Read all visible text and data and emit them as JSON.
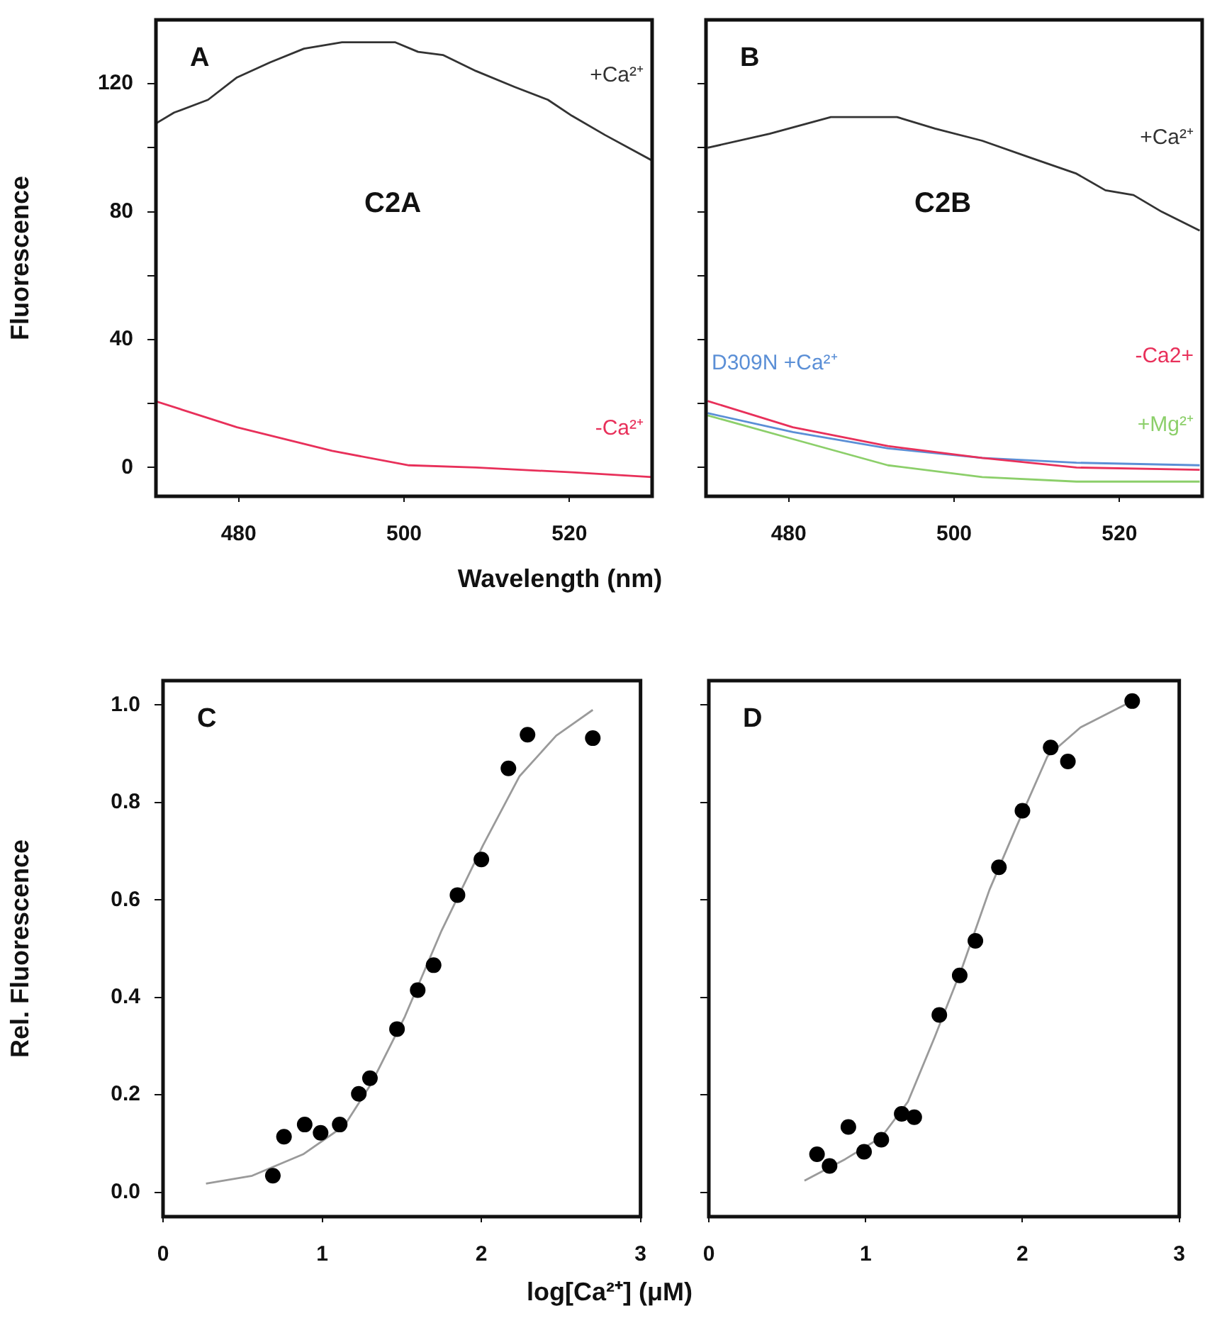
{
  "chart_data": [
    {
      "type": "line",
      "xlabel": "Wavelength (nm)",
      "ylabel": "Fluorescence",
      "annotations": [
        "A",
        "C2A"
      ],
      "xlim": [
        470,
        530
      ],
      "xticks": [
        480,
        500,
        520
      ],
      "ylim": [
        -9,
        140
      ],
      "yticks": [
        0,
        {
          "value": 20,
          "label": null
        },
        40,
        {
          "value": 60,
          "label": null
        },
        80,
        {
          "value": 100,
          "label": null
        },
        120
      ],
      "grid": false,
      "legend": false,
      "marker": "none",
      "line_style": "solid",
      "series": [
        {
          "name": "+Ca²⁺",
          "color": "#333333",
          "x": [
            470,
            472.2,
            476.3,
            479.8,
            483.8,
            487.9,
            492.5,
            498.9,
            501.7,
            504.7,
            508.7,
            513.4,
            517.4,
            520.3,
            524.3,
            530
          ],
          "values": [
            107.6,
            111,
            115,
            122,
            126.7,
            131,
            133,
            133,
            130,
            129,
            124,
            119,
            115,
            110,
            104,
            96
          ]
        },
        {
          "name": "-Ca²⁺",
          "color": "#e8305a",
          "x": [
            470,
            479.8,
            491.3,
            500.6,
            508.7,
            520.3,
            530
          ],
          "values": [
            20.7,
            12.6,
            5.2,
            0.7,
            0,
            -1.5,
            -3
          ]
        }
      ]
    },
    {
      "type": "line",
      "annotations": [
        "B",
        "C2B"
      ],
      "xlim": [
        470,
        530
      ],
      "xticks": [
        480,
        500,
        520
      ],
      "ylim": [
        -9,
        140
      ],
      "yticks": [
        0,
        {
          "value": 20,
          "label": null
        },
        40,
        {
          "value": 60,
          "label": null
        },
        80,
        {
          "value": 100,
          "label": null
        },
        120
      ],
      "tick_labels": "x",
      "grid": false,
      "legend": false,
      "marker": "none",
      "line_style": "solid",
      "series": [
        {
          "name": "+Ca²⁺",
          "color": "#333333",
          "x": [
            470.2,
            477.7,
            485.1,
            493.1,
            497.7,
            503.4,
            509.1,
            514.8,
            518.3,
            521.7,
            525.1,
            529.7
          ],
          "values": [
            100,
            104.4,
            109.6,
            109.6,
            106,
            102.2,
            97,
            91.9,
            86.7,
            85.2,
            80,
            74.1
          ]
        },
        {
          "name": "-Ca2+",
          "color": "#e8305a",
          "x": [
            470.2,
            480.5,
            492,
            503.4,
            514.8,
            529.7
          ],
          "values": [
            20.8,
            12.6,
            6.7,
            3,
            0,
            -0.7
          ]
        },
        {
          "name": "D309N +Ca²⁺",
          "color": "#5b8fd6",
          "x": [
            470.2,
            480.5,
            492,
            503.4,
            514.8,
            529.7
          ],
          "values": [
            17,
            11.1,
            6,
            3,
            1.5,
            0.7
          ]
        },
        {
          "name": "+Mg²⁺",
          "color": "#8ccf6a",
          "x": [
            470.2,
            480.5,
            492,
            503.4,
            514.8,
            529.7
          ],
          "values": [
            16.3,
            8.9,
            0.7,
            -3,
            -4.4,
            -4.4
          ]
        }
      ]
    },
    {
      "type": "scatter",
      "xlabel": "log[Ca²⁺] (μM)",
      "ylabel": "Rel. Fluorescence",
      "annotations": [
        "C"
      ],
      "xlim": [
        0,
        3
      ],
      "xticks": [
        0,
        1,
        2,
        3
      ],
      "ylim": [
        -0.05,
        1.05
      ],
      "yticks": [
        {
          "value": 0,
          "label": "0.0"
        },
        0.2,
        0.4,
        0.6,
        0.8,
        {
          "value": 1,
          "label": "1.0"
        }
      ],
      "grid": false,
      "legend": false,
      "marker": "circle",
      "series": [
        {
          "color": "#000000",
          "x": [
            0.69,
            0.76,
            0.89,
            0.99,
            1.11,
            1.23,
            1.3,
            1.47,
            1.6,
            1.7,
            1.85,
            2.0,
            2.17,
            2.29,
            2.7
          ],
          "values": [
            0.034,
            0.114,
            0.139,
            0.122,
            0.139,
            0.202,
            0.234,
            0.335,
            0.415,
            0.466,
            0.61,
            0.683,
            0.87,
            0.939,
            0.932
          ]
        },
        {
          "type": "line",
          "marker": "none",
          "color": "#9a9a9a",
          "x": [
            0.27,
            0.56,
            0.88,
            1.14,
            1.31,
            1.52,
            1.75,
            2.01,
            2.24,
            2.47,
            2.7
          ],
          "values": [
            0.018,
            0.034,
            0.078,
            0.137,
            0.224,
            0.361,
            0.537,
            0.712,
            0.854,
            0.937,
            0.99
          ]
        }
      ]
    },
    {
      "type": "scatter",
      "annotations": [
        "D"
      ],
      "xlim": [
        0,
        3
      ],
      "xticks": [
        0,
        1,
        2,
        3
      ],
      "ylim": [
        -0.05,
        1.05
      ],
      "yticks": [
        0,
        0.2,
        0.4,
        0.6,
        0.8,
        1
      ],
      "tick_labels": "x",
      "grid": false,
      "legend": false,
      "marker": "circle",
      "series": [
        {
          "color": "#000000",
          "x": [
            0.69,
            0.77,
            0.89,
            0.99,
            1.1,
            1.23,
            1.31,
            1.47,
            1.6,
            1.7,
            1.85,
            2.0,
            2.18,
            2.29,
            2.7
          ],
          "values": [
            0.078,
            0.054,
            0.134,
            0.083,
            0.108,
            0.161,
            0.154,
            0.364,
            0.445,
            0.516,
            0.667,
            0.783,
            0.913,
            0.884,
            1.008
          ]
        },
        {
          "type": "line",
          "marker": "none",
          "color": "#9a9a9a",
          "x": [
            0.61,
            0.87,
            1.1,
            1.27,
            1.44,
            1.62,
            1.79,
            1.96,
            2.16,
            2.37,
            2.7
          ],
          "values": [
            0.024,
            0.068,
            0.113,
            0.186,
            0.318,
            0.465,
            0.621,
            0.749,
            0.895,
            0.954,
            1.008
          ]
        }
      ]
    }
  ]
}
